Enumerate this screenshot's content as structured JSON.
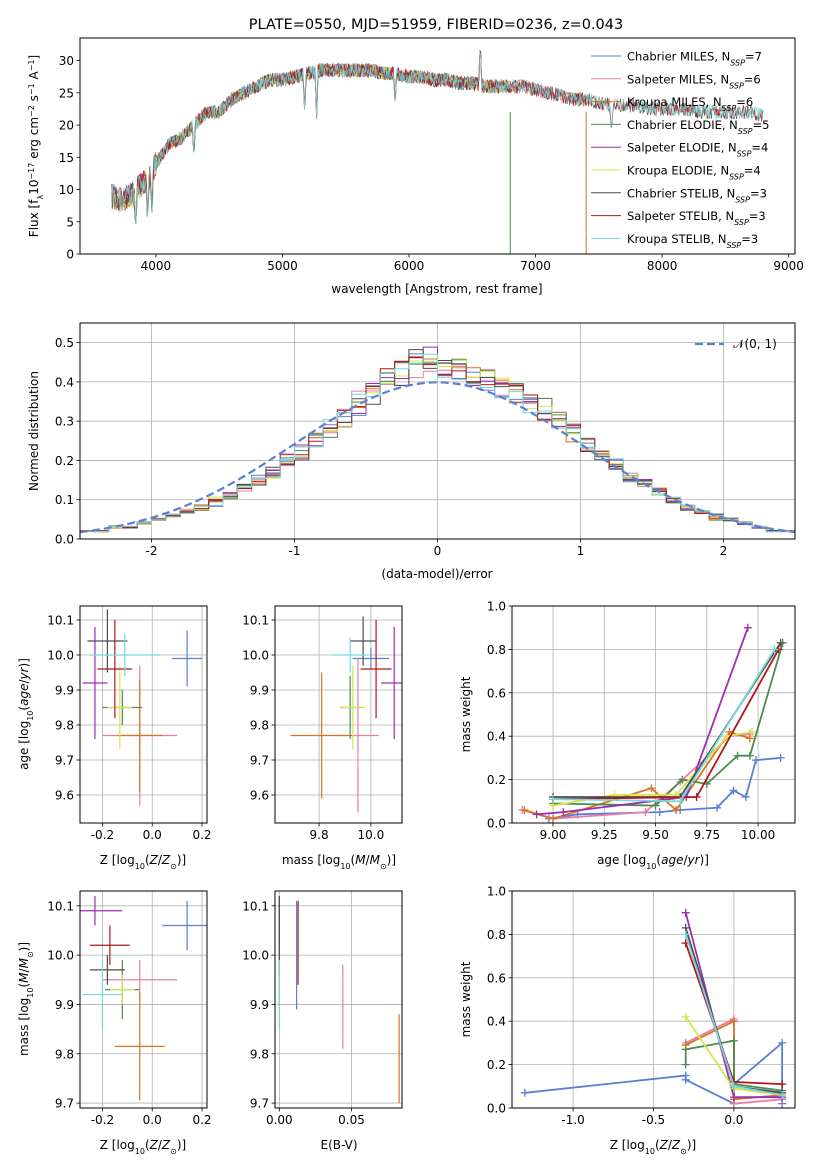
{
  "figure_title": "PLATE=0550, MJD=51959, FIBERID=0236, z=0.043",
  "colors": [
    "#5b7fd6",
    "#e67fa8",
    "#d9741f",
    "#4e8a4e",
    "#9a2fb0",
    "#d6e64d",
    "#4d4d4d",
    "#b01818",
    "#74d9dc"
  ],
  "chart_data": [
    {
      "type": "line",
      "title": "PLATE=0550, MJD=51959, FIBERID=0236, z=0.043",
      "xlabel": "wavelength [Angstrom, rest frame]",
      "ylabel": "Flux [f_λ 10^-17 erg cm^-2 s^-1 A^-1]",
      "xlim": [
        3400,
        9050
      ],
      "ylim": [
        0,
        33.5
      ],
      "xticks": [
        4000,
        5000,
        6000,
        7000,
        8000,
        9000
      ],
      "yticks": [
        0,
        5,
        10,
        15,
        20,
        25,
        30
      ],
      "grid": false,
      "legend_position": "top-right",
      "series": [
        {
          "name": "Chabrier MILES, N_SSP=7",
          "x_start": 3650,
          "x_end": 7400
        },
        {
          "name": "Salpeter MILES, N_SSP=6",
          "x_start": 3650,
          "x_end": 7400
        },
        {
          "name": "Kroupa MILES, N_SSP=6",
          "x_start": 3650,
          "x_end": 7400
        },
        {
          "name": "Chabrier ELODIE, N_SSP=5",
          "x_start": 3650,
          "x_end": 6800
        },
        {
          "name": "Salpeter ELODIE, N_SSP=4",
          "x_start": 3650,
          "x_end": 6800
        },
        {
          "name": "Kroupa ELODIE, N_SSP=4",
          "x_start": 3650,
          "x_end": 6800
        },
        {
          "name": "Chabrier STELIB, N_SSP=3",
          "x_start": 3650,
          "x_end": 8800
        },
        {
          "name": "Salpeter STELIB, N_SSP=3",
          "x_start": 3650,
          "x_end": 8800
        },
        {
          "name": "Kroupa STELIB, N_SSP=3",
          "x_start": 3650,
          "x_end": 8800
        }
      ],
      "continuum": {
        "x": [
          3650,
          3700,
          3750,
          3800,
          3850,
          3900,
          3950,
          4000,
          4100,
          4200,
          4300,
          4400,
          4500,
          4600,
          4700,
          4800,
          4900,
          5000,
          5100,
          5200,
          5300,
          5400,
          5500,
          5600,
          5700,
          5800,
          5900,
          6000,
          6100,
          6200,
          6300,
          6400,
          6500,
          6600,
          6700,
          6800,
          6900,
          7000,
          7100,
          7200,
          7300,
          7400,
          7500,
          7600,
          7700,
          7800,
          7900,
          8000,
          8100,
          8200,
          8300,
          8400,
          8500,
          8600,
          8700,
          8800
        ],
        "y": [
          9,
          8.5,
          8.5,
          9,
          10,
          11,
          12,
          14,
          17,
          18,
          20,
          22,
          22,
          24,
          25,
          26,
          27,
          27,
          27.5,
          28,
          28.5,
          28.5,
          28.5,
          28.5,
          28.5,
          28,
          28,
          27.5,
          27.5,
          27,
          27,
          26.5,
          26.5,
          26,
          26,
          26,
          26,
          25.5,
          25,
          24.5,
          24,
          24,
          23.5,
          23,
          23,
          23,
          22.5,
          22.5,
          22.5,
          22.5,
          22,
          22,
          22,
          22,
          22,
          21.5
        ]
      },
      "features": [
        {
          "x": 3840,
          "y": 4
        },
        {
          "x": 3934,
          "y": 5
        },
        {
          "x": 3969,
          "y": 6
        },
        {
          "x": 4300,
          "y": 15
        },
        {
          "x": 5175,
          "y": 22
        },
        {
          "x": 5270,
          "y": 21
        },
        {
          "x": 5890,
          "y": 23
        },
        {
          "x": 6563,
          "y": 33
        },
        {
          "x": 7600,
          "y": 19
        }
      ]
    },
    {
      "type": "line",
      "xlabel": "(data-model)/error",
      "ylabel": "Normed distribution",
      "xlim": [
        -2.5,
        2.5
      ],
      "ylim": [
        0,
        0.55
      ],
      "xticks": [
        -2,
        -1,
        0,
        1,
        2
      ],
      "yticks": [
        0.0,
        0.1,
        0.2,
        0.3,
        0.4,
        0.5
      ],
      "grid": true,
      "legend_position": "top-right",
      "legend": [
        {
          "name": "𝒩(0, 1)",
          "style": "dashed"
        }
      ],
      "bin_width": 0.1,
      "histograms": [
        {
          "x_start": -2.5,
          "values": [
            0.02,
            0.02,
            0.03,
            0.03,
            0.04,
            0.05,
            0.06,
            0.07,
            0.08,
            0.09,
            0.11,
            0.13,
            0.15,
            0.17,
            0.2,
            0.22,
            0.25,
            0.28,
            0.31,
            0.34,
            0.37,
            0.4,
            0.42,
            0.47,
            0.46,
            0.44,
            0.43,
            0.41,
            0.4,
            0.38,
            0.37,
            0.35,
            0.33,
            0.3,
            0.27,
            0.24,
            0.21,
            0.19,
            0.16,
            0.14,
            0.12,
            0.1,
            0.08,
            0.07,
            0.06,
            0.05,
            0.04,
            0.03,
            0.02,
            0.02
          ]
        },
        {
          "x_start": -2.5,
          "values": [
            0.02,
            0.02,
            0.03,
            0.03,
            0.04,
            0.05,
            0.06,
            0.07,
            0.08,
            0.1,
            0.11,
            0.13,
            0.15,
            0.17,
            0.19,
            0.22,
            0.25,
            0.28,
            0.31,
            0.35,
            0.38,
            0.41,
            0.43,
            0.44,
            0.45,
            0.44,
            0.43,
            0.42,
            0.41,
            0.39,
            0.37,
            0.35,
            0.33,
            0.3,
            0.27,
            0.24,
            0.22,
            0.19,
            0.16,
            0.14,
            0.12,
            0.1,
            0.08,
            0.07,
            0.05,
            0.05,
            0.04,
            0.03,
            0.02,
            0.02
          ]
        }
      ],
      "normal_curve": {
        "mean": 0,
        "sigma": 1
      }
    },
    {
      "type": "scatter",
      "xlabel": "Z [log10(Z/Z⊙)]",
      "ylabel": "age [log10(age/yr)]",
      "xlim": [
        -0.29,
        0.22
      ],
      "ylim": [
        9.52,
        10.14
      ],
      "xticks": [
        -0.2,
        0.0,
        0.2
      ],
      "yticks": [
        9.6,
        9.7,
        9.8,
        9.9,
        10.0,
        10.1
      ],
      "grid": true,
      "errorbars": [
        {
          "x": 0.14,
          "y": 9.99,
          "xerr": 0.06,
          "yerr": 0.08
        },
        {
          "x": -0.05,
          "y": 9.77,
          "xerr": 0.15,
          "yerr": 0.2
        },
        {
          "x": -0.05,
          "y": 9.77,
          "xerr": 0.09,
          "yerr": 0.16
        },
        {
          "x": -0.12,
          "y": 9.85,
          "xerr": 0.08,
          "yerr": 0.05
        },
        {
          "x": -0.23,
          "y": 9.92,
          "xerr": 0.05,
          "yerr": 0.16
        },
        {
          "x": -0.13,
          "y": 9.85,
          "xerr": 0.05,
          "yerr": 0.12
        },
        {
          "x": -0.18,
          "y": 10.04,
          "xerr": 0.08,
          "yerr": 0.09
        },
        {
          "x": -0.15,
          "y": 9.96,
          "xerr": 0.07,
          "yerr": 0.14
        },
        {
          "x": -0.11,
          "y": 10.0,
          "xerr": 0.14,
          "yerr": 0.06
        }
      ]
    },
    {
      "type": "scatter",
      "xlabel": "mass [log10(M/M⊙)]",
      "ylabel": "",
      "xlim": [
        9.63,
        10.12
      ],
      "ylim": [
        9.52,
        10.14
      ],
      "xticks": [
        9.8,
        10.0
      ],
      "yticks": [
        9.6,
        9.7,
        9.8,
        9.9,
        10.0,
        10.1
      ],
      "grid": true,
      "errorbars": [
        {
          "x": 10.0,
          "y": 9.99,
          "xerr": 0.07,
          "yerr": 0.03
        },
        {
          "x": 9.95,
          "y": 9.77,
          "xerr": 0.08,
          "yerr": 0.22
        },
        {
          "x": 9.81,
          "y": 9.77,
          "xerr": 0.12,
          "yerr": 0.18
        },
        {
          "x": 9.92,
          "y": 9.85,
          "xerr": 0.04,
          "yerr": 0.09
        },
        {
          "x": 10.09,
          "y": 9.92,
          "xerr": 0.05,
          "yerr": 0.16
        },
        {
          "x": 9.93,
          "y": 9.85,
          "xerr": 0.05,
          "yerr": 0.12
        },
        {
          "x": 9.97,
          "y": 10.04,
          "xerr": 0.05,
          "yerr": 0.07
        },
        {
          "x": 10.02,
          "y": 9.96,
          "xerr": 0.06,
          "yerr": 0.14
        },
        {
          "x": 9.92,
          "y": 10.0,
          "xerr": 0.07,
          "yerr": 0.05
        }
      ]
    },
    {
      "type": "line",
      "xlabel": "age [log10(age/yr)]",
      "ylabel": "mass weight",
      "xlim": [
        8.8,
        10.18
      ],
      "ylim": [
        0.0,
        1.0
      ],
      "xticks": [
        9.0,
        9.25,
        9.5,
        9.75,
        10.0
      ],
      "yticks": [
        0.0,
        0.2,
        0.4,
        0.6,
        0.8,
        1.0
      ],
      "grid": true,
      "series": [
        {
          "x": [
            8.98,
            9.12,
            9.52,
            9.62,
            9.8,
            9.88,
            9.94,
            9.99,
            10.11
          ],
          "y": [
            0.02,
            0.04,
            0.05,
            0.06,
            0.07,
            0.15,
            0.12,
            0.29,
            0.3
          ]
        },
        {
          "x": [
            8.85,
            9.0,
            9.45,
            9.62,
            9.86,
            9.96
          ],
          "y": [
            0.06,
            0.02,
            0.05,
            0.19,
            0.4,
            0.41
          ]
        },
        {
          "x": [
            8.86,
            9.0,
            9.48,
            9.6,
            9.86,
            9.96
          ],
          "y": [
            0.06,
            0.02,
            0.16,
            0.06,
            0.42,
            0.39
          ]
        },
        {
          "x": [
            9.0,
            9.5,
            9.63,
            9.75,
            9.9,
            9.96,
            10.12
          ],
          "y": [
            0.09,
            0.08,
            0.2,
            0.18,
            0.31,
            0.31,
            0.83
          ]
        },
        {
          "x": [
            8.92,
            9.05,
            9.65,
            9.95
          ],
          "y": [
            0.04,
            0.05,
            0.12,
            0.9
          ]
        },
        {
          "x": [
            9.0,
            9.3,
            9.6,
            9.85,
            9.97
          ],
          "y": [
            0.08,
            0.13,
            0.13,
            0.4,
            0.42
          ]
        },
        {
          "x": [
            9.0,
            9.62,
            10.11
          ],
          "y": [
            0.12,
            0.12,
            0.83
          ]
        },
        {
          "x": [
            9.0,
            9.7,
            10.1
          ],
          "y": [
            0.11,
            0.12,
            0.8
          ]
        },
        {
          "x": [
            9.0,
            9.62,
            10.08
          ],
          "y": [
            0.11,
            0.1,
            0.8
          ]
        }
      ]
    },
    {
      "type": "scatter",
      "xlabel": "Z [log10(Z/Z⊙)]",
      "ylabel": "mass [log10(M/M⊙)]",
      "xlim": [
        -0.29,
        0.22
      ],
      "ylim": [
        9.69,
        10.13
      ],
      "xticks": [
        -0.2,
        0.0,
        0.2
      ],
      "yticks": [
        9.7,
        9.8,
        9.9,
        10.0,
        10.1
      ],
      "grid": true,
      "errorbars": [
        {
          "x": 0.14,
          "y": 10.06,
          "xerr": 0.1,
          "yerr": 0.05
        },
        {
          "x": -0.05,
          "y": 9.95,
          "xerr": 0.15,
          "yerr": 0.04
        },
        {
          "x": -0.05,
          "y": 9.815,
          "xerr": 0.1,
          "yerr": 0.11
        },
        {
          "x": -0.12,
          "y": 9.93,
          "xerr": 0.07,
          "yerr": 0.06
        },
        {
          "x": -0.23,
          "y": 10.09,
          "xerr": 0.11,
          "yerr": 0.03
        },
        {
          "x": -0.12,
          "y": 9.93,
          "xerr": 0.05,
          "yerr": 0.03
        },
        {
          "x": -0.18,
          "y": 9.97,
          "xerr": 0.07,
          "yerr": 0.03
        },
        {
          "x": -0.17,
          "y": 10.02,
          "xerr": 0.08,
          "yerr": 0.04
        },
        {
          "x": -0.2,
          "y": 9.92,
          "xerr": 0.08,
          "yerr": 0.07
        }
      ]
    },
    {
      "type": "scatter",
      "xlabel": "E(B-V)",
      "ylabel": "",
      "xlim": [
        -0.003,
        0.085
      ],
      "ylim": [
        9.69,
        10.13
      ],
      "xticks": [
        0.0,
        0.05
      ],
      "yticks": [
        9.7,
        9.8,
        9.9,
        10.0,
        10.1
      ],
      "grid": true,
      "errorbars": [
        {
          "x": 0.012,
          "y": 10.0,
          "xerr": 0,
          "yerr": 0.11
        },
        {
          "x": 0.044,
          "y": 9.895,
          "xerr": 0,
          "yerr": 0.085
        },
        {
          "x": 0.083,
          "y": 9.79,
          "xerr": 0,
          "yerr": 0.09
        },
        {
          "x": 0.0,
          "y": 9.96,
          "xerr": 0,
          "yerr": 0.06
        },
        {
          "x": 0.0,
          "y": 10.04,
          "xerr": 0,
          "yerr": 0.08
        },
        {
          "x": 0.0,
          "y": 9.96,
          "xerr": 0,
          "yerr": 0.06
        },
        {
          "x": 0.0,
          "y": 10.04,
          "xerr": 0,
          "yerr": 0.08
        },
        {
          "x": 0.013,
          "y": 10.025,
          "xerr": 0,
          "yerr": 0.085
        },
        {
          "x": 0.0,
          "y": 9.92,
          "xerr": 0,
          "yerr": 0.07
        }
      ]
    },
    {
      "type": "line",
      "xlabel": "Z [log10(Z/Z⊙)]",
      "ylabel": "mass weight",
      "xlim": [
        -1.38,
        0.38
      ],
      "ylim": [
        0.0,
        1.0
      ],
      "xticks": [
        -1.0,
        -0.5,
        0.0
      ],
      "yticks": [
        0.0,
        0.2,
        0.4,
        0.6,
        0.8,
        1.0
      ],
      "grid": true,
      "series": [
        {
          "x": [
            -1.3,
            -0.3,
            -0.3,
            0.0,
            0.0,
            0.3,
            0.3,
            0.3
          ],
          "y": [
            0.07,
            0.15,
            0.13,
            0.02,
            0.11,
            0.3,
            0.04,
            0.02
          ]
        },
        {
          "x": [
            -0.3,
            0.0,
            0.0,
            0.3
          ],
          "y": [
            0.3,
            0.41,
            0.02,
            0.04
          ]
        },
        {
          "x": [
            -0.3,
            0.0,
            0.0,
            0.3
          ],
          "y": [
            0.29,
            0.4,
            0.04,
            0.06
          ]
        },
        {
          "x": [
            -0.3,
            -0.3,
            0.0,
            0.0,
            0.3
          ],
          "y": [
            0.2,
            0.27,
            0.31,
            0.11,
            0.08
          ]
        },
        {
          "x": [
            -0.3,
            0.0,
            0.3
          ],
          "y": [
            0.9,
            0.05,
            0.05
          ]
        },
        {
          "x": [
            -0.3,
            0.0,
            0.3
          ],
          "y": [
            0.42,
            0.09,
            0.06
          ]
        },
        {
          "x": [
            -0.3,
            0.0,
            0.3
          ],
          "y": [
            0.83,
            0.1,
            0.07
          ]
        },
        {
          "x": [
            -0.3,
            0.0,
            0.3
          ],
          "y": [
            0.76,
            0.12,
            0.11
          ]
        },
        {
          "x": [
            -0.3,
            0.0,
            0.3
          ],
          "y": [
            0.8,
            0.1,
            0.06
          ]
        }
      ]
    }
  ]
}
